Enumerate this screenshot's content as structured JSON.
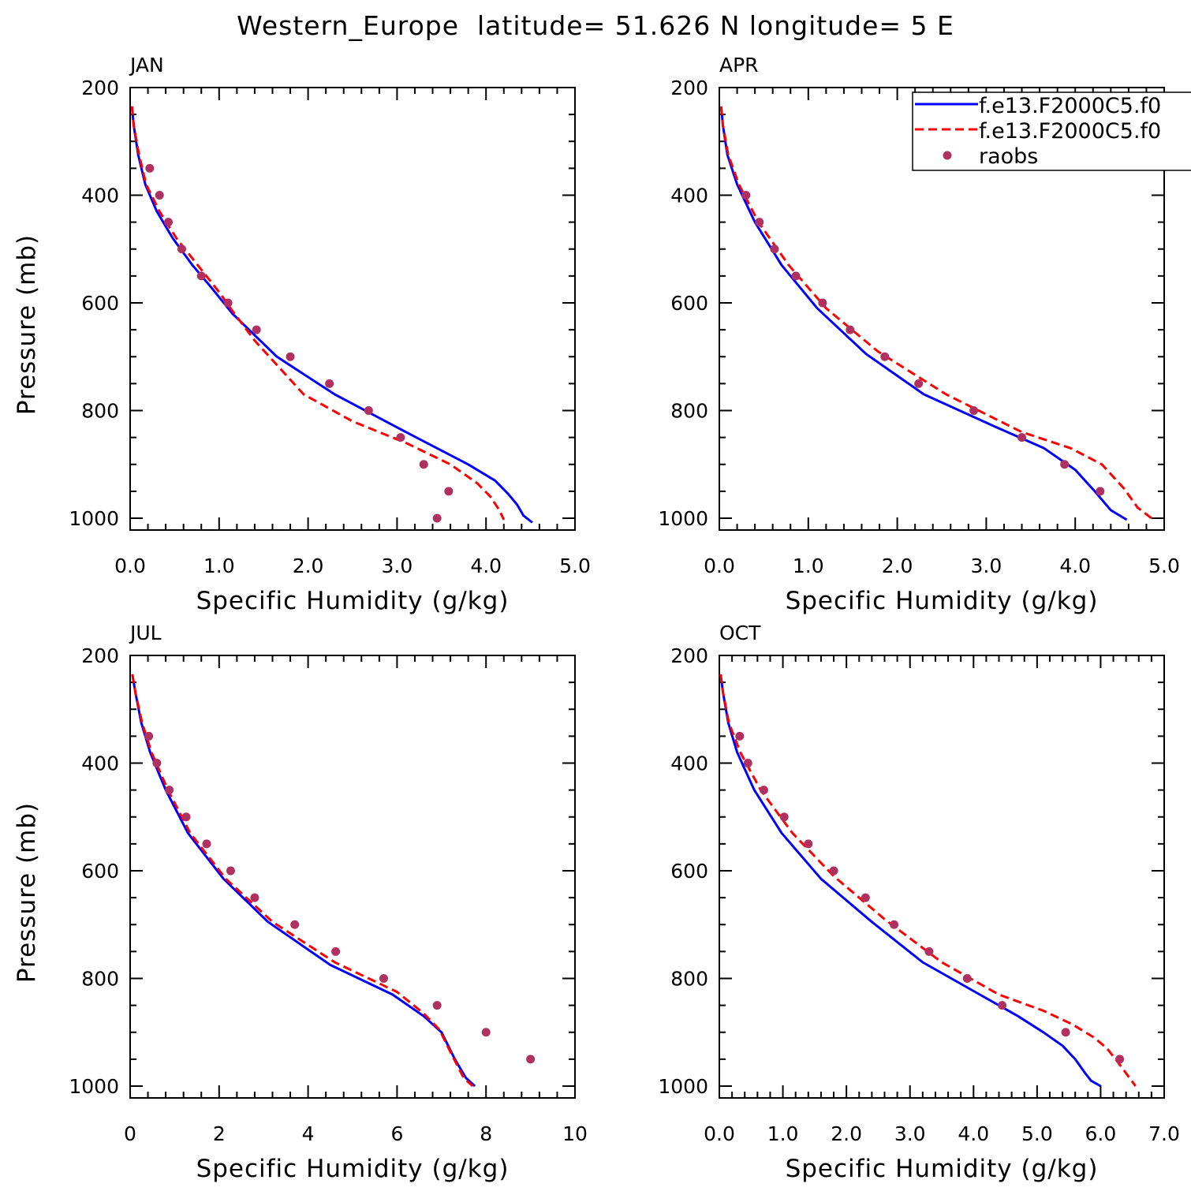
{
  "figure": {
    "title": "Western_Europe  latitude= 51.626 N longitude= 5 E"
  },
  "colors": {
    "model1": "#0000ff",
    "model2": "#ff0000",
    "raobs": "#b03060"
  },
  "legend": {
    "placement": "top-right of APR panel",
    "items": [
      {
        "label": "f.e13.F2000C5.f0",
        "style": "solid",
        "color": "#0000ff"
      },
      {
        "label": "f.e13.F2000C5.f0",
        "style": "dashed",
        "color": "#ff0000"
      },
      {
        "label": "raobs",
        "style": "marker",
        "color": "#b03060"
      }
    ]
  },
  "chart_data": [
    {
      "type": "line",
      "panel": "JAN",
      "xlabel": "Specific Humidity (g/kg)",
      "ylabel": "Pressure (mb)",
      "xlim": [
        0,
        5
      ],
      "ylim": [
        200,
        1000
      ],
      "y_inverted": true,
      "xticks": [
        0,
        1,
        2,
        3,
        4,
        5
      ],
      "xtick_labels": [
        "0.0",
        "1.0",
        "2.0",
        "3.0",
        "4.0",
        "5.0"
      ],
      "yticks": [
        200,
        400,
        600,
        800,
        1000
      ],
      "series": [
        {
          "kind": "solid",
          "color": "#0000ff",
          "points": [
            [
              0.02,
              235
            ],
            [
              0.04,
              270
            ],
            [
              0.09,
              325
            ],
            [
              0.17,
              380
            ],
            [
              0.3,
              430
            ],
            [
              0.48,
              480
            ],
            [
              0.7,
              530
            ],
            [
              0.93,
              575
            ],
            [
              1.15,
              620
            ],
            [
              1.65,
              700
            ],
            [
              2.3,
              770
            ],
            [
              3.1,
              840
            ],
            [
              3.8,
              900
            ],
            [
              4.1,
              930
            ],
            [
              4.25,
              955
            ],
            [
              4.35,
              975
            ],
            [
              4.42,
              995
            ],
            [
              4.52,
              1008
            ]
          ]
        },
        {
          "kind": "dashed",
          "color": "#ff0000",
          "points": [
            [
              0.02,
              235
            ],
            [
              0.04,
              270
            ],
            [
              0.1,
              325
            ],
            [
              0.18,
              380
            ],
            [
              0.33,
              430
            ],
            [
              0.52,
              480
            ],
            [
              0.76,
              530
            ],
            [
              1.0,
              580
            ],
            [
              1.15,
              615
            ],
            [
              1.4,
              670
            ],
            [
              1.95,
              770
            ],
            [
              2.5,
              820
            ],
            [
              3.1,
              860
            ],
            [
              3.6,
              900
            ],
            [
              3.9,
              935
            ],
            [
              4.05,
              960
            ],
            [
              4.15,
              985
            ],
            [
              4.2,
              1003
            ]
          ]
        },
        {
          "kind": "marker",
          "color": "#b03060",
          "points": [
            [
              0.22,
              350
            ],
            [
              0.33,
              400
            ],
            [
              0.43,
              450
            ],
            [
              0.58,
              500
            ],
            [
              0.8,
              550
            ],
            [
              1.1,
              600
            ],
            [
              1.42,
              650
            ],
            [
              1.8,
              700
            ],
            [
              2.24,
              750
            ],
            [
              2.68,
              800
            ],
            [
              3.04,
              850
            ],
            [
              3.3,
              900
            ],
            [
              3.58,
              950
            ],
            [
              3.45,
              1000
            ]
          ]
        }
      ]
    },
    {
      "type": "line",
      "panel": "APR",
      "xlabel": "Specific Humidity (g/kg)",
      "ylabel": "",
      "xlim": [
        0,
        5
      ],
      "ylim": [
        200,
        1000
      ],
      "y_inverted": true,
      "xticks": [
        0,
        1,
        2,
        3,
        4,
        5
      ],
      "xtick_labels": [
        "0.0",
        "1.0",
        "2.0",
        "3.0",
        "4.0",
        "5.0"
      ],
      "yticks": [
        200,
        400,
        600,
        800,
        1000
      ],
      "series": [
        {
          "kind": "solid",
          "color": "#0000ff",
          "points": [
            [
              0.02,
              235
            ],
            [
              0.04,
              270
            ],
            [
              0.09,
              325
            ],
            [
              0.2,
              380
            ],
            [
              0.4,
              450
            ],
            [
              0.7,
              530
            ],
            [
              1.1,
              610
            ],
            [
              1.65,
              695
            ],
            [
              2.3,
              770
            ],
            [
              3.1,
              830
            ],
            [
              3.65,
              870
            ],
            [
              4.0,
              910
            ],
            [
              4.22,
              950
            ],
            [
              4.4,
              985
            ],
            [
              4.58,
              1003
            ]
          ]
        },
        {
          "kind": "dashed",
          "color": "#ff0000",
          "points": [
            [
              0.02,
              235
            ],
            [
              0.04,
              270
            ],
            [
              0.1,
              325
            ],
            [
              0.22,
              380
            ],
            [
              0.44,
              450
            ],
            [
              0.78,
              530
            ],
            [
              1.2,
              610
            ],
            [
              1.78,
              690
            ],
            [
              2.55,
              770
            ],
            [
              3.4,
              840
            ],
            [
              3.95,
              870
            ],
            [
              4.3,
              900
            ],
            [
              4.55,
              945
            ],
            [
              4.7,
              980
            ],
            [
              4.88,
              1003
            ]
          ]
        },
        {
          "kind": "marker",
          "color": "#b03060",
          "points": [
            [
              0.3,
              400
            ],
            [
              0.45,
              450
            ],
            [
              0.62,
              500
            ],
            [
              0.86,
              550
            ],
            [
              1.16,
              600
            ],
            [
              1.47,
              650
            ],
            [
              1.86,
              700
            ],
            [
              2.24,
              750
            ],
            [
              2.86,
              800
            ],
            [
              3.4,
              850
            ],
            [
              3.88,
              900
            ],
            [
              4.28,
              950
            ]
          ]
        }
      ]
    },
    {
      "type": "line",
      "panel": "JUL",
      "xlabel": "Specific Humidity (g/kg)",
      "ylabel": "Pressure (mb)",
      "xlim": [
        0,
        10
      ],
      "ylim": [
        200,
        1000
      ],
      "y_inverted": true,
      "xticks": [
        0,
        2,
        4,
        6,
        8,
        10
      ],
      "xtick_labels": [
        "0",
        "2",
        "4",
        "6",
        "8",
        "10"
      ],
      "yticks": [
        200,
        400,
        600,
        800,
        1000
      ],
      "series": [
        {
          "kind": "solid",
          "color": "#0000ff",
          "points": [
            [
              0.05,
              235
            ],
            [
              0.12,
              270
            ],
            [
              0.25,
              325
            ],
            [
              0.45,
              380
            ],
            [
              0.8,
              450
            ],
            [
              1.3,
              530
            ],
            [
              2.1,
              615
            ],
            [
              3.1,
              695
            ],
            [
              4.5,
              775
            ],
            [
              5.9,
              830
            ],
            [
              6.6,
              870
            ],
            [
              7.0,
              900
            ],
            [
              7.3,
              950
            ],
            [
              7.55,
              985
            ],
            [
              7.75,
              1000
            ]
          ]
        },
        {
          "kind": "dashed",
          "color": "#ff0000",
          "points": [
            [
              0.05,
              235
            ],
            [
              0.12,
              270
            ],
            [
              0.27,
              325
            ],
            [
              0.48,
              380
            ],
            [
              0.85,
              450
            ],
            [
              1.35,
              530
            ],
            [
              2.15,
              615
            ],
            [
              3.2,
              695
            ],
            [
              4.6,
              770
            ],
            [
              6.0,
              825
            ],
            [
              6.6,
              865
            ],
            [
              6.95,
              895
            ],
            [
              7.25,
              945
            ],
            [
              7.5,
              985
            ],
            [
              7.7,
              1000
            ]
          ]
        },
        {
          "kind": "marker",
          "color": "#b03060",
          "points": [
            [
              0.42,
              350
            ],
            [
              0.6,
              400
            ],
            [
              0.88,
              450
            ],
            [
              1.26,
              500
            ],
            [
              1.72,
              550
            ],
            [
              2.26,
              600
            ],
            [
              2.8,
              650
            ],
            [
              3.7,
              700
            ],
            [
              4.62,
              750
            ],
            [
              5.7,
              800
            ],
            [
              6.9,
              850
            ],
            [
              8.0,
              900
            ],
            [
              9.0,
              950
            ]
          ]
        }
      ]
    },
    {
      "type": "line",
      "panel": "OCT",
      "xlabel": "Specific Humidity (g/kg)",
      "ylabel": "",
      "xlim": [
        0,
        7
      ],
      "ylim": [
        200,
        1000
      ],
      "y_inverted": true,
      "xticks": [
        0,
        1,
        2,
        3,
        4,
        5,
        6,
        7
      ],
      "xtick_labels": [
        "0.0",
        "1.0",
        "2.0",
        "3.0",
        "4.0",
        "5.0",
        "6.0",
        "7.0"
      ],
      "yticks": [
        200,
        400,
        600,
        800,
        1000
      ],
      "series": [
        {
          "kind": "solid",
          "color": "#0000ff",
          "points": [
            [
              0.02,
              235
            ],
            [
              0.06,
              270
            ],
            [
              0.14,
              325
            ],
            [
              0.28,
              380
            ],
            [
              0.55,
              450
            ],
            [
              0.98,
              530
            ],
            [
              1.6,
              615
            ],
            [
              2.4,
              695
            ],
            [
              3.2,
              770
            ],
            [
              4.1,
              830
            ],
            [
              4.7,
              870
            ],
            [
              5.1,
              900
            ],
            [
              5.4,
              925
            ],
            [
              5.6,
              950
            ],
            [
              5.75,
              975
            ],
            [
              5.85,
              990
            ],
            [
              6.0,
              1000
            ]
          ]
        },
        {
          "kind": "dashed",
          "color": "#ff0000",
          "points": [
            [
              0.02,
              235
            ],
            [
              0.06,
              270
            ],
            [
              0.15,
              325
            ],
            [
              0.33,
              380
            ],
            [
              0.65,
              450
            ],
            [
              1.15,
              530
            ],
            [
              1.8,
              610
            ],
            [
              2.6,
              690
            ],
            [
              3.5,
              770
            ],
            [
              4.4,
              830
            ],
            [
              5.1,
              860
            ],
            [
              5.55,
              885
            ],
            [
              5.9,
              910
            ],
            [
              6.1,
              930
            ],
            [
              6.3,
              960
            ],
            [
              6.55,
              1000
            ]
          ]
        },
        {
          "kind": "marker",
          "color": "#b03060",
          "points": [
            [
              0.32,
              350
            ],
            [
              0.45,
              400
            ],
            [
              0.7,
              450
            ],
            [
              1.02,
              500
            ],
            [
              1.4,
              550
            ],
            [
              1.8,
              600
            ],
            [
              2.3,
              650
            ],
            [
              2.75,
              700
            ],
            [
              3.3,
              750
            ],
            [
              3.9,
              800
            ],
            [
              4.45,
              850
            ],
            [
              5.45,
              900
            ],
            [
              6.3,
              950
            ]
          ]
        }
      ]
    }
  ]
}
